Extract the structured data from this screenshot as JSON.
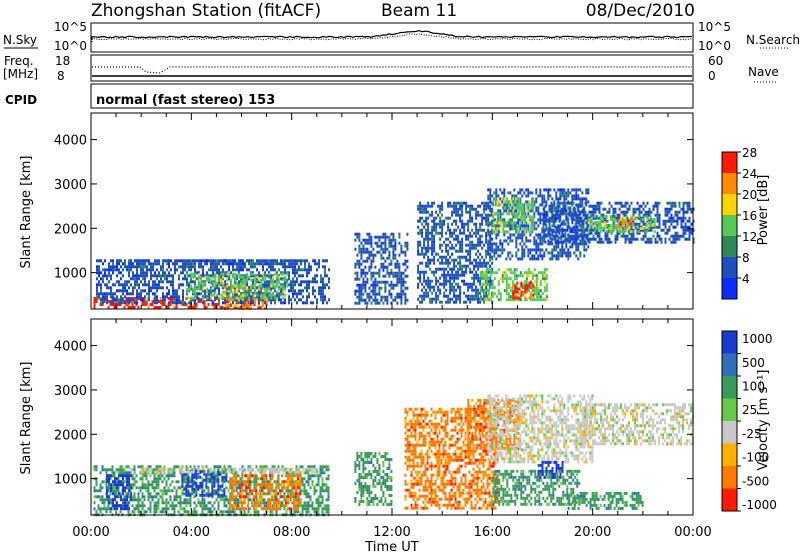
{
  "header": {
    "title": "Zhongshan Station (fitACF)",
    "beam": "Beam 11",
    "date": "08/Dec/2010"
  },
  "noise_panel": {
    "left_label": "N.Sky",
    "right_label": "N.Search",
    "ticks": [
      "10^5",
      "10^0"
    ]
  },
  "freq_panel": {
    "left_label_line1": "Freq.",
    "left_label_line2": "[MHz]",
    "left_ticks": [
      "18",
      "8"
    ],
    "right_ticks": [
      "60",
      "0"
    ],
    "right_label": "Nave"
  },
  "cpid_panel": {
    "label": "CPID",
    "text": "normal (fast stereo) 153"
  },
  "chart_data": [
    {
      "type": "heatmap",
      "name": "power",
      "ylabel": "Slant Range [km]",
      "xlabel": "",
      "yticks": [
        1000,
        2000,
        3000,
        4000
      ],
      "ylim": [
        180,
        4600
      ],
      "xlim": [
        0,
        24
      ],
      "colorbar": {
        "label": "Power [dB]",
        "ticks": [
          "4",
          "8",
          "12",
          "16",
          "20",
          "24",
          "28"
        ],
        "colors": [
          "#0b2cff",
          "#1f4fbf",
          "#2f8a57",
          "#57c957",
          "#ffd400",
          "#ff8a00",
          "#ff1a00"
        ]
      },
      "regions": [
        {
          "t0": 0.1,
          "t1": 7.0,
          "r0": 200,
          "r1": 450,
          "level": 6
        },
        {
          "t0": 5.3,
          "t1": 7.0,
          "r0": 200,
          "r1": 700,
          "level": 5
        },
        {
          "t0": 0.2,
          "t1": 9.5,
          "r0": 300,
          "r1": 1300,
          "level": 1
        },
        {
          "t0": 1.0,
          "t1": 8.3,
          "r0": 1200,
          "r1": 1300,
          "level": 1
        },
        {
          "t0": 3.8,
          "t1": 7.8,
          "r0": 450,
          "r1": 1000,
          "level": 3
        },
        {
          "t0": 10.5,
          "t1": 12.6,
          "r0": 300,
          "r1": 1900,
          "level": 1
        },
        {
          "t0": 13.0,
          "t1": 16.0,
          "r0": 300,
          "r1": 2600,
          "level": 1
        },
        {
          "t0": 15.8,
          "t1": 19.8,
          "r0": 1300,
          "r1": 2900,
          "level": 1
        },
        {
          "t0": 16.0,
          "t1": 17.6,
          "r0": 1900,
          "r1": 2700,
          "level": 3
        },
        {
          "t0": 15.5,
          "t1": 18.2,
          "r0": 400,
          "r1": 1100,
          "level": 3
        },
        {
          "t0": 16.8,
          "t1": 17.6,
          "r0": 400,
          "r1": 800,
          "level": 6
        },
        {
          "t0": 18.0,
          "t1": 24.0,
          "r0": 1700,
          "r1": 2600,
          "level": 1
        },
        {
          "t0": 19.8,
          "t1": 22.5,
          "r0": 1900,
          "r1": 2300,
          "level": 3
        },
        {
          "t0": 21.0,
          "t1": 21.6,
          "r0": 2000,
          "r1": 2200,
          "level": 5
        }
      ]
    },
    {
      "type": "heatmap",
      "name": "velocity",
      "ylabel": "Slant Range [km]",
      "xlabel": "Time UT",
      "xtick_labels": [
        "00:00",
        "04:00",
        "08:00",
        "12:00",
        "16:00",
        "20:00",
        "00:00"
      ],
      "yticks": [
        1000,
        2000,
        3000,
        4000
      ],
      "ylim": [
        180,
        4600
      ],
      "xlim": [
        0,
        24
      ],
      "colorbar": {
        "label": "Velocity [m s⁻¹]",
        "ticks": [
          "1000",
          "500",
          "100",
          "25",
          "-25",
          "-100",
          "-500",
          "-1000"
        ],
        "colors": [
          "#1a3bd1",
          "#2f6fb5",
          "#3a9a5a",
          "#66c94a",
          "#c8c8c8",
          "#ffb000",
          "#ff7a00",
          "#ff1a00"
        ]
      },
      "regions": [
        {
          "t0": 0.1,
          "t1": 9.5,
          "r0": 200,
          "r1": 1300,
          "level": 2
        },
        {
          "t0": 0.6,
          "t1": 1.6,
          "r0": 300,
          "r1": 1100,
          "level": 0
        },
        {
          "t0": 3.6,
          "t1": 5.4,
          "r0": 600,
          "r1": 1200,
          "level": 0
        },
        {
          "t0": 5.5,
          "t1": 8.3,
          "r0": 350,
          "r1": 1100,
          "level": 6
        },
        {
          "t0": 1.5,
          "t1": 9.0,
          "r0": 1150,
          "r1": 1250,
          "level": 4
        },
        {
          "t0": 10.5,
          "t1": 12.0,
          "r0": 400,
          "r1": 1600,
          "level": 2
        },
        {
          "t0": 12.5,
          "t1": 16.2,
          "r0": 300,
          "r1": 2600,
          "level": 6
        },
        {
          "t0": 15.0,
          "t1": 17.0,
          "r0": 1700,
          "r1": 2800,
          "level": 6
        },
        {
          "t0": 15.8,
          "t1": 20.0,
          "r0": 1400,
          "r1": 2900,
          "level": 4
        },
        {
          "t0": 16.0,
          "t1": 19.5,
          "r0": 400,
          "r1": 1200,
          "level": 2
        },
        {
          "t0": 17.8,
          "t1": 18.8,
          "r0": 1000,
          "r1": 1400,
          "level": 0
        },
        {
          "t0": 19.5,
          "t1": 24.0,
          "r0": 1800,
          "r1": 2700,
          "level": 4
        },
        {
          "t0": 19.0,
          "t1": 22.0,
          "r0": 300,
          "r1": 700,
          "level": 2
        }
      ]
    }
  ]
}
